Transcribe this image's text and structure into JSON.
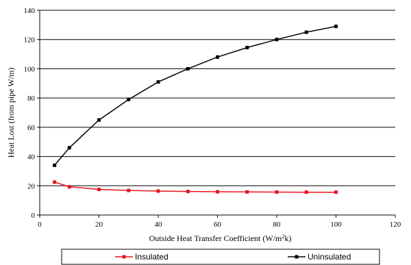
{
  "chart_data": {
    "type": "line",
    "title": "",
    "xlabel": "Outside Heat Transfer Coefficient (W/m",
    "xlabel_sup": "2",
    "xlabel_tail": "k)",
    "ylabel": "Heat Lost (from pipe W/m)",
    "xlim": [
      0,
      120
    ],
    "ylim": [
      0,
      140
    ],
    "xticks": [
      0,
      20,
      40,
      60,
      80,
      100,
      120
    ],
    "yticks": [
      0,
      20,
      40,
      60,
      80,
      100,
      120,
      140
    ],
    "grid": "horizontal",
    "legend_position": "bottom",
    "x": [
      5,
      10,
      20,
      30,
      40,
      50,
      60,
      70,
      80,
      90,
      100
    ],
    "series": [
      {
        "name": "Insulated",
        "color": "#e8141c",
        "marker": "square",
        "values": [
          22.5,
          19.3,
          17.5,
          16.8,
          16.4,
          16.1,
          15.9,
          15.8,
          15.7,
          15.6,
          15.6
        ]
      },
      {
        "name": "Uninsulated",
        "color": "#000000",
        "marker": "square",
        "values": [
          34,
          46,
          65,
          79,
          91,
          100,
          108,
          114.5,
          120,
          125,
          129
        ]
      }
    ]
  }
}
